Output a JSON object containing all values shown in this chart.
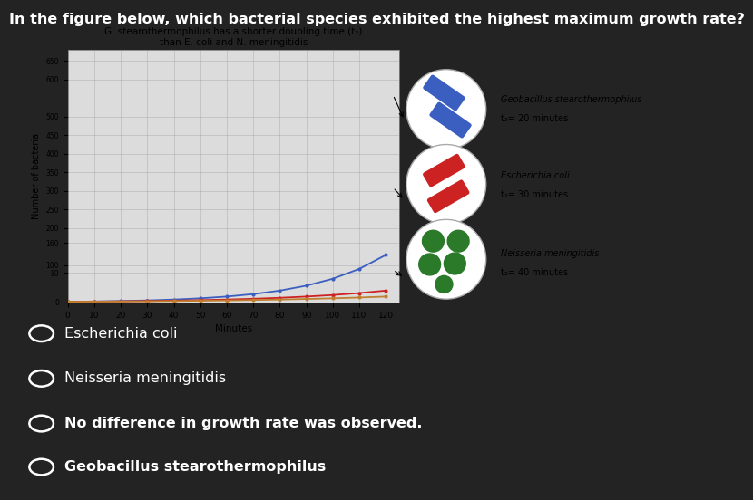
{
  "title": "In the figure below, which bacterial species exhibited the highest maximum growth rate?",
  "chart_title_line1": "G. stearothermophilus has a shorter doubling time (t₂)",
  "chart_title_line2": "than E. coli and N. meningitidis",
  "xlabel": "Minutes",
  "ylabel": "Number of bacteria",
  "xlim": [
    0,
    125
  ],
  "ylim": [
    0,
    680
  ],
  "yticks": [
    0,
    80,
    100,
    160,
    200,
    250,
    300,
    350,
    400,
    450,
    500,
    600,
    650
  ],
  "xticks": [
    0,
    10,
    20,
    30,
    40,
    50,
    60,
    70,
    80,
    90,
    100,
    110,
    120
  ],
  "bg_color": "#232323",
  "chart_bg": "#dcdcdc",
  "options": [
    {
      "text": "Escherichia coli",
      "bold": false
    },
    {
      "text": "Neisseria meningitidis",
      "bold": false
    },
    {
      "text": "No difference in growth rate was observed.",
      "bold": true
    },
    {
      "text": "Geobacillus stearothermophilus",
      "bold": true
    }
  ],
  "geo_color": "#3b5fc0",
  "ecoli_color": "#cc2222",
  "neiss_color": "#c08030",
  "geo_label1": "Geobacillus stearothermophilus",
  "geo_label2": "t₂= 20 minutes",
  "ecoli_label1": "Escherichia coli",
  "ecoli_label2": "t₂= 30 minutes",
  "neiss_label1": "Neisseria meningitidis",
  "neiss_label2": "t₂= 40 minutes",
  "green_dot": "#2a7a2a"
}
